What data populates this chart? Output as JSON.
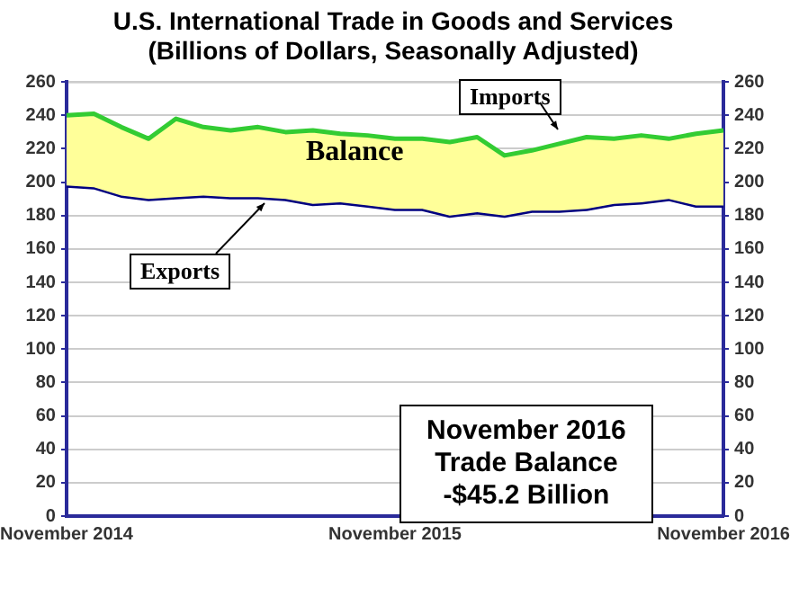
{
  "chart_data": {
    "type": "line",
    "title": "U.S. International Trade in Goods and Services\n(Billions of Dollars, Seasonally Adjusted)",
    "categories": [
      "November 2014",
      null,
      null,
      null,
      null,
      null,
      null,
      null,
      null,
      null,
      null,
      null,
      "November 2015",
      null,
      null,
      null,
      null,
      null,
      null,
      null,
      null,
      null,
      null,
      null,
      "November 2016"
    ],
    "series": [
      {
        "name": "Imports",
        "type": "area",
        "color": "#33cc33",
        "values": [
          240,
          241,
          233,
          226,
          238,
          233,
          231,
          233,
          230,
          231,
          229,
          228,
          226,
          226,
          224,
          227,
          216,
          219,
          223,
          227,
          226,
          228,
          226,
          229,
          231
        ]
      },
      {
        "name": "Exports",
        "color": "#000080",
        "values": [
          198,
          197,
          192,
          190,
          191,
          192,
          191,
          191,
          190,
          187,
          188,
          186,
          184,
          184,
          180,
          182,
          180,
          183,
          183,
          184,
          187,
          188,
          190,
          186,
          186
        ]
      }
    ],
    "ylim": [
      0,
      260
    ],
    "yticks": [
      0,
      20,
      40,
      60,
      80,
      100,
      120,
      140,
      160,
      180,
      200,
      220,
      240,
      260
    ],
    "y2lim": [
      0,
      260
    ],
    "y2ticks": [
      0,
      20,
      40,
      60,
      80,
      100,
      120,
      140,
      160,
      180,
      200,
      220,
      240,
      260
    ],
    "grid": "y",
    "legend": false,
    "marker": "none",
    "line_style": "solid",
    "annotations": [
      "Balance",
      "November 2016\nTrade Balance\n-$45.2 Billion"
    ]
  }
}
